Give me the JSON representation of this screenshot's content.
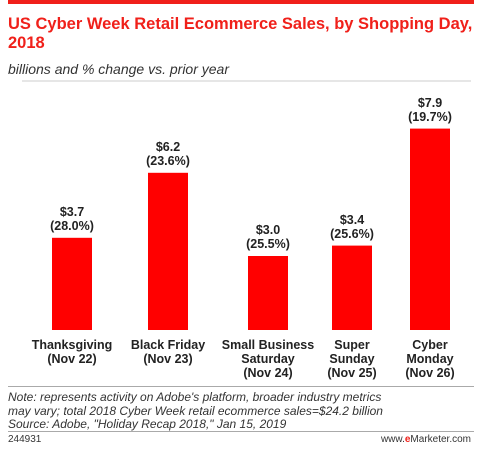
{
  "chart_data": {
    "type": "bar",
    "title": "US Cyber Week Retail Ecommerce Sales, by Shopping Day, 2018",
    "subtitle": "billions and % change vs. prior year",
    "categories": [
      [
        "Thanksgiving",
        "(Nov 22)"
      ],
      [
        "Black Friday",
        "(Nov 23)"
      ],
      [
        "Small Business",
        "Saturday",
        "(Nov 24)"
      ],
      [
        "Super",
        "Sunday",
        "(Nov 25)"
      ],
      [
        "Cyber",
        "Monday",
        "(Nov 26)"
      ]
    ],
    "values": [
      3.7,
      6.2,
      3.0,
      3.4,
      7.9
    ],
    "value_labels": [
      "$3.7",
      "$6.2",
      "$3.0",
      "$3.4",
      "$7.9"
    ],
    "pct_change_labels": [
      "(28.0%)",
      "(23.6%)",
      "(25.5%)",
      "(25.6%)",
      "(19.7%)"
    ],
    "ylim": [
      0,
      8.5
    ],
    "grid": false,
    "bar_color": "#ff0000"
  },
  "footer": {
    "note_lines": [
      "Note: represents activity on Adobe's platform, broader industry metrics",
      "may vary; total 2018 Cyber Week retail ecommerce sales=$24.2 billion",
      "Source: Adobe, \"Holiday Recap 2018,\" Jan 15, 2019"
    ],
    "code": "244931",
    "brand_prefix": "www.",
    "brand_mark": "e",
    "brand_suffix": "Marketer.com"
  }
}
